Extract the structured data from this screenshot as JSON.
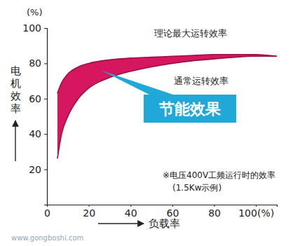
{
  "chart_data": {
    "type": "area",
    "color": "#d6175f",
    "x": [
      5,
      7,
      10,
      15,
      20,
      30,
      40,
      50,
      60,
      70,
      80,
      90,
      100,
      110
    ],
    "series": [
      {
        "name": "理论最大运转效率",
        "color": "#9e0f45",
        "values": [
          63,
          69,
          74,
          78,
          80,
          82,
          83,
          83.5,
          84,
          84.5,
          85,
          85,
          85,
          84
        ]
      },
      {
        "name": "通常运转效率",
        "color": "#9e0f45",
        "values": [
          26,
          40,
          50,
          60,
          66,
          72,
          75.5,
          78,
          80,
          81.5,
          82.5,
          83.5,
          84,
          84
        ]
      }
    ],
    "x_label": "负载率",
    "y_label": "电机效率",
    "xlim": [
      0,
      110
    ],
    "xticks": [
      0,
      20,
      40,
      60,
      80,
      {
        "value": 100,
        "label": "100(%)"
      }
    ],
    "ylim": [
      0,
      100
    ],
    "yticks": [
      20,
      40,
      60,
      80,
      100
    ],
    "grid": false,
    "annotations": [
      "(%)",
      "节能效果",
      "※电压400V工频运行时的效率",
      "(1.5Kw示例)",
      "www.gongboshi.com"
    ]
  }
}
